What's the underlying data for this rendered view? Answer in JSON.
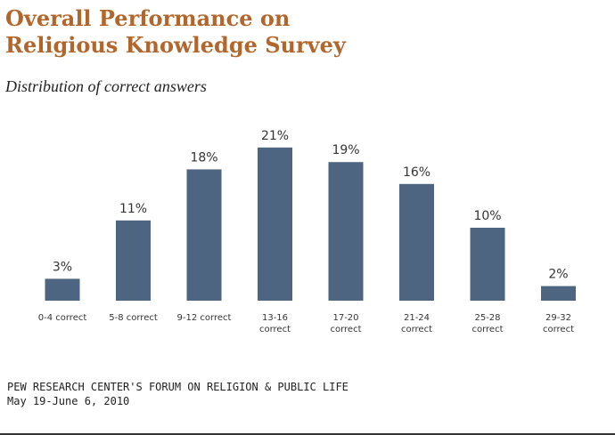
{
  "chart_data": {
    "type": "bar",
    "title": "Overall Performance on Religious Knowledge Survey",
    "subtitle": "Distribution of correct answers",
    "categories": [
      [
        "0-4 correct"
      ],
      [
        "5-8 correct"
      ],
      [
        "9-12 correct"
      ],
      [
        "13-16",
        "correct"
      ],
      [
        "17-20",
        "correct"
      ],
      [
        "21-24",
        "correct"
      ],
      [
        "25-28",
        "correct"
      ],
      [
        "29-32",
        "correct"
      ]
    ],
    "values": [
      3,
      11,
      18,
      21,
      19,
      16,
      10,
      2
    ],
    "value_labels": [
      "3%",
      "11%",
      "18%",
      "21%",
      "19%",
      "16%",
      "10%",
      "2%"
    ],
    "bar_color": "#4d6580",
    "title_color": "#b3662b",
    "xlabel": "",
    "ylabel": "",
    "grid": false,
    "legend": "none"
  },
  "source": {
    "line1": "PEW RESEARCH CENTER'S FORUM ON RELIGION & PUBLIC LIFE",
    "line2": "May 19-June 6, 2010"
  }
}
